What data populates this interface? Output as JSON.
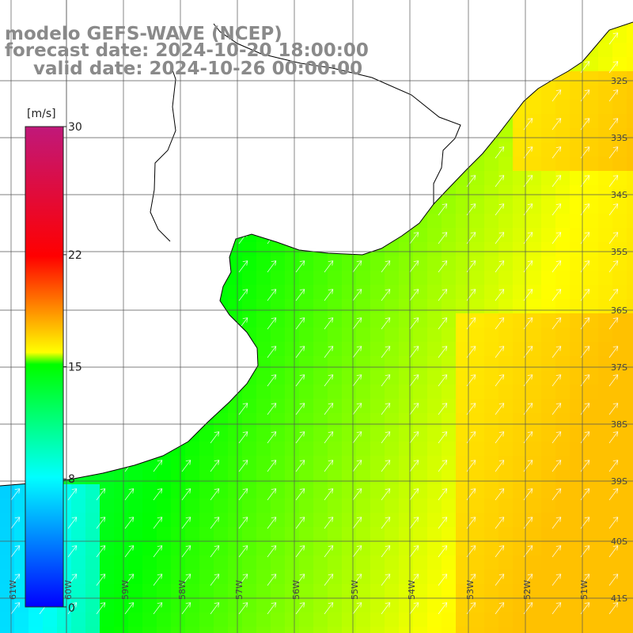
{
  "titles": {
    "model": "modelo GEFS-WAVE (NCEP)",
    "forecast": "forecast date: 2024-10-20 18:00:00",
    "valid": "valid date: 2024-10-26 00:00:00"
  },
  "colorbar": {
    "unit": "[m/s]",
    "min": 0,
    "max": 30,
    "ticks": [
      {
        "value": 30,
        "label": "30"
      },
      {
        "value": 22,
        "label": "22"
      },
      {
        "value": 15,
        "label": "15"
      },
      {
        "value": 8,
        "label": "8"
      },
      {
        "value": 0,
        "label": "0"
      }
    ],
    "stops": [
      "#0000ff",
      "#00ffff",
      "#00ff00",
      "#ffff00",
      "#ff0000",
      "#c0187a"
    ]
  },
  "map": {
    "lon_range": [
      -61.5,
      -50.5
    ],
    "lat_range": [
      -41.5,
      -31.5
    ],
    "lat_labels": [
      "32S",
      "33S",
      "34S",
      "35S",
      "36S",
      "37S",
      "38S",
      "39S",
      "40S",
      "41S"
    ],
    "lon_labels": [
      "61W",
      "60W",
      "59W",
      "58W",
      "57W",
      "56W",
      "55W",
      "54W",
      "53W",
      "52W",
      "51W"
    ],
    "grid": true,
    "wind_direction": "from southwest",
    "land_color": "#ffffff",
    "coast_color": "#000000"
  }
}
